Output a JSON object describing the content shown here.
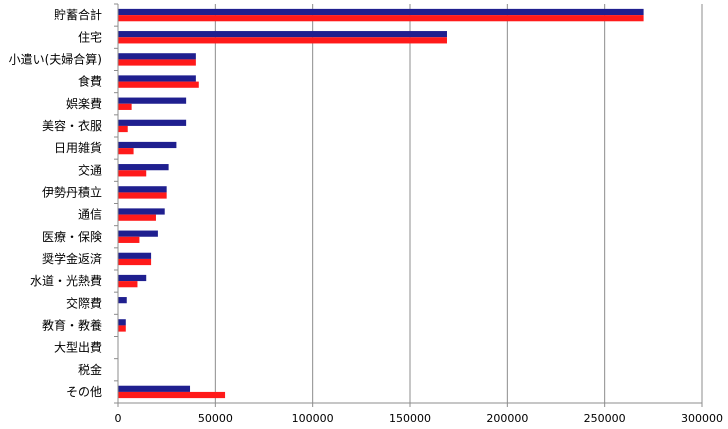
{
  "chart_data": {
    "type": "bar",
    "orientation": "horizontal",
    "categories": [
      "貯蓄合計",
      "住宅",
      "小遣い(夫婦合算)",
      "食費",
      "娯楽費",
      "美容・衣服",
      "日用雑貨",
      "交通",
      "伊勢丹積立",
      "通信",
      "医療・保険",
      "奨学金返済",
      "水道・光熱費",
      "交際費",
      "教育・教養",
      "大型出費",
      "税金",
      "その他"
    ],
    "series": [
      {
        "color": "#1f1f8f",
        "values": [
          270000,
          169000,
          40000,
          40000,
          35000,
          35000,
          30000,
          26000,
          25000,
          24000,
          20500,
          17000,
          14500,
          4500,
          4000,
          0,
          0,
          37000
        ]
      },
      {
        "color": "#ff1a1a",
        "values": [
          270000,
          169000,
          40000,
          41500,
          7000,
          5000,
          8000,
          14500,
          25000,
          19500,
          11000,
          17000,
          10000,
          0,
          4000,
          0,
          0,
          55000
        ]
      }
    ],
    "xlim": [
      0,
      300000
    ],
    "xticks": [
      "0",
      "50000",
      "100000",
      "150000",
      "200000",
      "250000",
      "300000"
    ],
    "grid": true,
    "legend": "none"
  }
}
